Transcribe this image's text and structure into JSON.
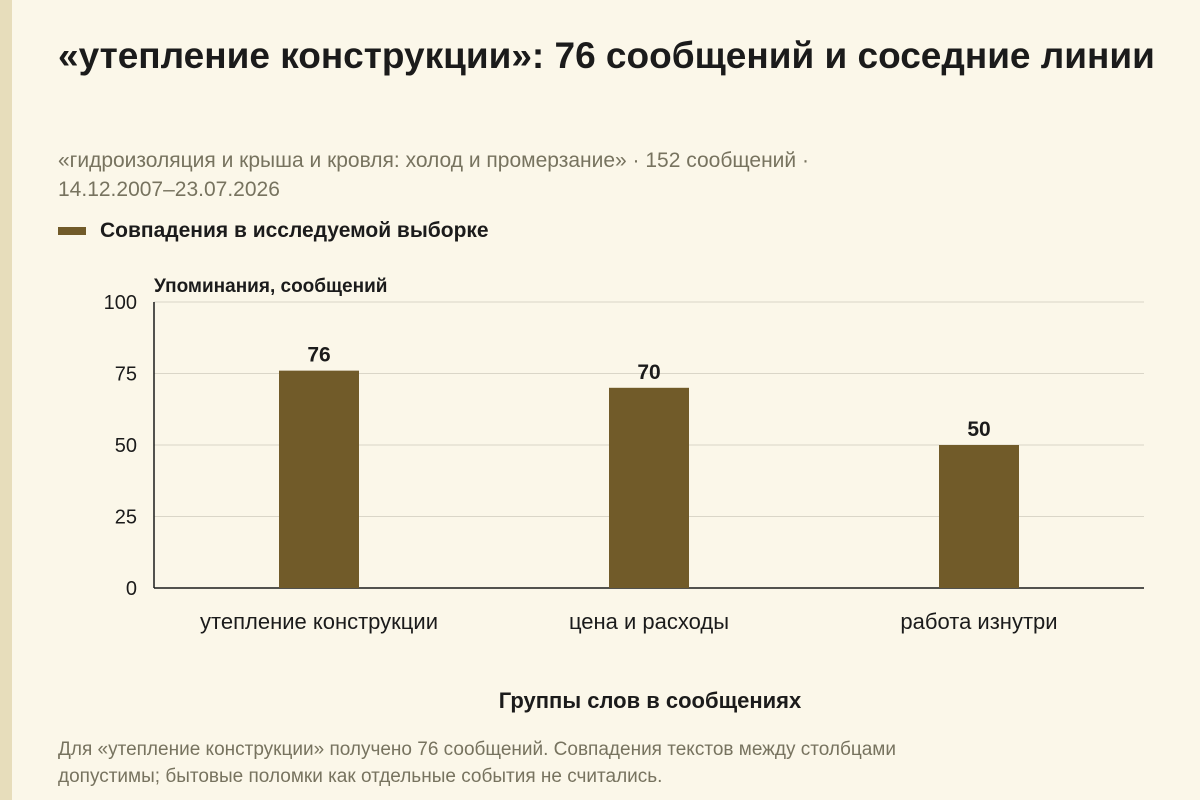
{
  "title": "«утепление конструкции»: 76 сообщений и соседние линии",
  "subtitle_line1": "«гидроизоляция и крыша и кровля: холод и промерзание» · 152 сообщений ·",
  "subtitle_line2": "14.12.2007–23.07.2026",
  "legend_label": "Совпадения в исследуемой выборке",
  "footnote_line1": "Для «утепление конструкции» получено 76 сообщений. Совпадения текстов между столбцами",
  "footnote_line2": "допустимы; бытовые поломки как отдельные события не считались.",
  "colors": {
    "bar": "#715B29",
    "background": "#FBF7E9",
    "grid": "#DAD6C8",
    "side_strip": "#E7DDBB",
    "muted_text": "#77735F"
  },
  "chart_data": {
    "type": "bar",
    "categories": [
      "утепление конструкции",
      "цена и расходы",
      "работа изнутри"
    ],
    "series": [
      {
        "name": "Совпадения в исследуемой выборке",
        "values": [
          76,
          70,
          50
        ]
      }
    ],
    "data_labels": [
      "76",
      "70",
      "50"
    ],
    "ylabel": "Упоминания, сообщений",
    "xlabel": "Группы слов в сообщениях",
    "ylim": [
      0,
      100
    ],
    "yticks": [
      0,
      25,
      50,
      75,
      100
    ],
    "grid": true,
    "legend_position": "top-left"
  }
}
